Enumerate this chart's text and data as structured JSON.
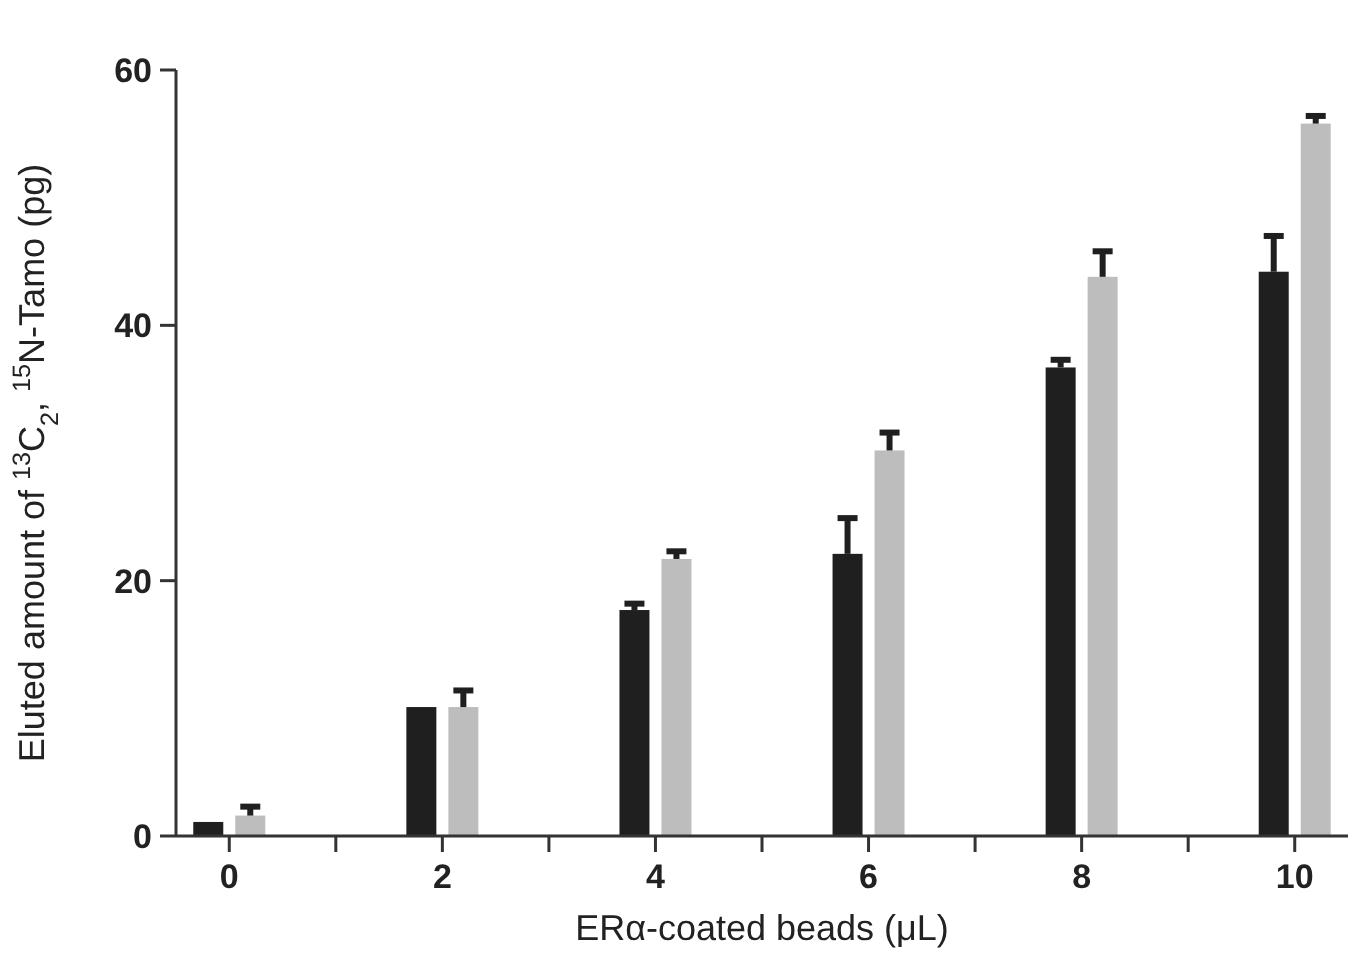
{
  "chart_data": {
    "type": "bar",
    "x": [
      0,
      2,
      4,
      6,
      8,
      10
    ],
    "xlim": [
      -0.5,
      10.5
    ],
    "xticks": [
      0,
      {
        "value": 1,
        "label": null
      },
      2,
      {
        "value": 3,
        "label": null
      },
      4,
      {
        "value": 5,
        "label": null
      },
      6,
      {
        "value": 7,
        "label": null
      },
      8,
      {
        "value": 9,
        "label": null
      },
      10
    ],
    "ylim": [
      0,
      60
    ],
    "yticks": [
      0,
      20,
      40,
      60
    ],
    "xlabel": "ERα-coated beads (μL)",
    "ylabel": "Eluted amount of $^{13}$C$_{2}$, $^{15}$N-Tamo  (pg)",
    "grid": false,
    "series": [
      {
        "color": "#1f1f1f",
        "values": [
          1.1,
          10.1,
          17.7,
          22.1,
          36.7,
          44.2
        ],
        "errors": [
          null,
          null,
          [
            17.7,
            18.2
          ],
          [
            22.1,
            24.9
          ],
          [
            36.7,
            37.3
          ],
          [
            44.2,
            47.0
          ]
        ]
      },
      {
        "color": "#bdbdbd",
        "values": [
          1.6,
          10.1,
          21.7,
          30.2,
          43.8,
          55.8
        ],
        "errors": [
          [
            1.6,
            2.3
          ],
          [
            10.1,
            11.4
          ],
          [
            21.7,
            22.3
          ],
          [
            30.2,
            31.6
          ],
          [
            43.8,
            45.8
          ],
          [
            55.8,
            56.4
          ]
        ]
      }
    ]
  }
}
